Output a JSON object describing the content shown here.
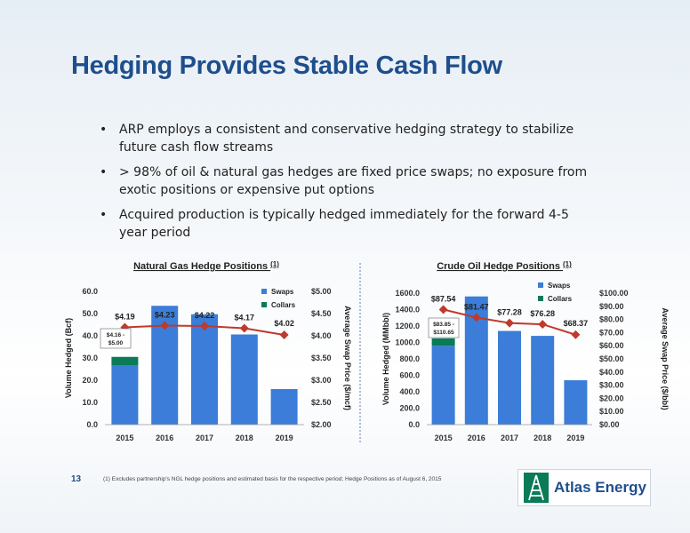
{
  "slide": {
    "title": "Hedging Provides Stable Cash Flow",
    "bullets": [
      "ARP employs a consistent and conservative hedging strategy to stabilize future cash flow streams",
      "> 98% of oil & natural gas hedges are fixed price swaps; no exposure from exotic positions or expensive put options",
      "Acquired production is typically hedged immediately for the forward 4-5 year period"
    ],
    "page_number": "13",
    "footnote": "(1)     Excludes partnership's NGL hedge positions and estimated basis for the respective period; Hedge Positions as of August 6, 2015",
    "logo_text": "Atlas Energy",
    "logo_icon": "derrick-icon"
  },
  "chart_data": [
    {
      "type": "bar",
      "title": "Natural Gas Hedge Positions",
      "title_superscript": "(1)",
      "categories": [
        "2015",
        "2016",
        "2017",
        "2018",
        "2019"
      ],
      "series": [
        {
          "name": "Swaps",
          "kind": "bar",
          "color": "#3b7dd8",
          "values": [
            26.8,
            53.5,
            49.7,
            40.6,
            16.0
          ]
        },
        {
          "name": "Collars",
          "kind": "bar",
          "color": "#0a7a57",
          "values": [
            3.7,
            0,
            0,
            0,
            0
          ]
        },
        {
          "name": "Average Swap Price",
          "kind": "line",
          "axis": "right",
          "color": "#c0392b",
          "values": [
            4.19,
            4.23,
            4.22,
            4.17,
            4.02
          ],
          "labels": [
            "$4.19",
            "$4.23",
            "$4.22",
            "$4.17",
            "$4.02"
          ]
        }
      ],
      "ylabel": "Volume Hedged (Bcf)",
      "ylim": [
        0,
        60
      ],
      "yticks": [
        0,
        10,
        20,
        30,
        40,
        50,
        60
      ],
      "ytick_labels": [
        "0.0",
        "10.0",
        "20.0",
        "30.0",
        "40.0",
        "50.0",
        "60.0"
      ],
      "y2label": "Average Swap Price ($/mcf)",
      "y2lim": [
        2.0,
        5.0
      ],
      "y2ticks": [
        2.0,
        2.5,
        3.0,
        3.5,
        4.0,
        4.5,
        5.0
      ],
      "y2tick_labels": [
        "$2.00",
        "$2.50",
        "$3.00",
        "$3.50",
        "$4.00",
        "$4.50",
        "$5.00"
      ],
      "collar_note": [
        "$4.16 -",
        "$5.00"
      ],
      "legend": [
        "Swaps",
        "Collars"
      ],
      "legend_position": "top-right",
      "grid": false
    },
    {
      "type": "bar",
      "title": "Crude Oil Hedge Positions",
      "title_superscript": "(1)",
      "categories": [
        "2015",
        "2016",
        "2017",
        "2018",
        "2019"
      ],
      "series": [
        {
          "name": "Swaps",
          "kind": "bar",
          "color": "#3b7dd8",
          "values": [
            960,
            1560,
            1140,
            1080,
            540
          ]
        },
        {
          "name": "Collars",
          "kind": "bar",
          "color": "#0a7a57",
          "values": [
            90,
            0,
            0,
            0,
            0
          ]
        },
        {
          "name": "Average Swap Price",
          "kind": "line",
          "axis": "right",
          "color": "#c0392b",
          "values": [
            87.54,
            81.47,
            77.28,
            76.28,
            68.37
          ],
          "labels": [
            "$87.54",
            "$81.47",
            "$77.28",
            "$76.28",
            "$68.37"
          ]
        }
      ],
      "ylabel": "Volume Hedged (MMbbl)",
      "ylim": [
        0,
        1600
      ],
      "yticks": [
        0,
        200,
        400,
        600,
        800,
        1000,
        1200,
        1400,
        1600
      ],
      "ytick_labels": [
        "0.0",
        "200.0",
        "400.0",
        "600.0",
        "800.0",
        "1000.0",
        "1200.0",
        "1400.0",
        "1600.0"
      ],
      "y2label": "Average Swap Price ($/bbl)",
      "y2lim": [
        0,
        100
      ],
      "y2ticks": [
        0,
        10,
        20,
        30,
        40,
        50,
        60,
        70,
        80,
        90,
        100
      ],
      "y2tick_labels": [
        "$0.00",
        "$10.00",
        "$20.00",
        "$30.00",
        "$40.00",
        "$50.00",
        "$60.00",
        "$70.00",
        "$80.00",
        "$90.00",
        "$100.00"
      ],
      "collar_note": [
        "$83.85 -",
        "$110.65"
      ],
      "legend": [
        "Swaps",
        "Collars"
      ],
      "legend_position": "top-right",
      "grid": false
    }
  ]
}
